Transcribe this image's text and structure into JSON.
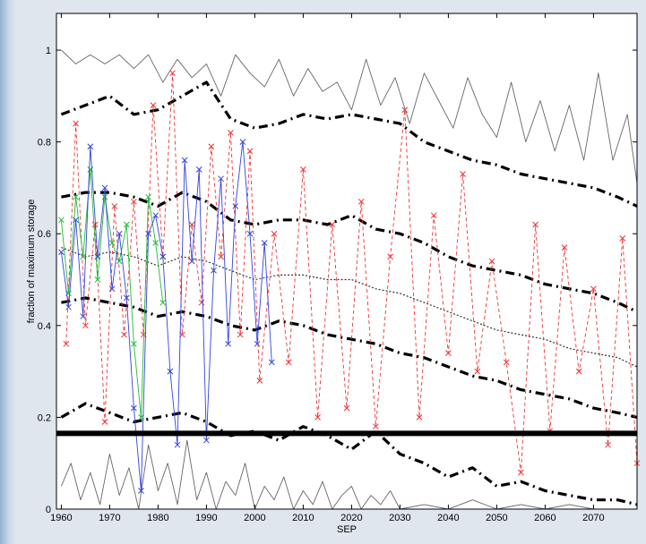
{
  "chart_data": {
    "type": "line",
    "title": "",
    "xlabel": "SEP",
    "ylabel": "fraction of maximum storage",
    "xlim": [
      1959,
      2079
    ],
    "ylim": [
      0,
      1.08
    ],
    "xticks": [
      1960,
      1970,
      1980,
      1990,
      2000,
      2010,
      2020,
      2030,
      2040,
      2050,
      2060,
      2070
    ],
    "yticks": [
      0,
      0.2,
      0.4,
      0.6,
      0.8,
      1
    ],
    "grid": false,
    "legend": "none",
    "threshold": 0.165,
    "series": [
      {
        "style": "solid-thin",
        "color": "#666666",
        "x": [
          1960,
          1963,
          1966,
          1969,
          1972,
          1975,
          1978,
          1981,
          1984,
          1987,
          1990,
          1993,
          1996,
          1999,
          2002,
          2005,
          2008,
          2011,
          2014,
          2017,
          2020,
          2023,
          2026,
          2029,
          2032,
          2035,
          2038,
          2041,
          2044,
          2047,
          2050,
          2053,
          2056,
          2059,
          2062,
          2065,
          2068,
          2071,
          2074,
          2077,
          2079
        ],
        "y": [
          1.0,
          0.97,
          0.99,
          0.97,
          0.99,
          0.96,
          0.99,
          0.93,
          0.98,
          0.94,
          0.97,
          0.9,
          0.99,
          0.95,
          0.92,
          0.98,
          0.9,
          0.96,
          0.91,
          0.93,
          0.87,
          0.98,
          0.88,
          0.94,
          0.84,
          0.95,
          0.89,
          0.83,
          0.94,
          0.86,
          0.81,
          0.93,
          0.8,
          0.89,
          0.78,
          0.88,
          0.76,
          0.95,
          0.76,
          0.86,
          0.71
        ]
      },
      {
        "style": "dash-dot-thick",
        "color": "#000000",
        "x": [
          1960,
          1965,
          1970,
          1975,
          1980,
          1985,
          1990,
          1995,
          2000,
          2005,
          2010,
          2015,
          2020,
          2025,
          2030,
          2035,
          2040,
          2045,
          2050,
          2055,
          2060,
          2065,
          2070,
          2075,
          2079
        ],
        "y": [
          0.86,
          0.88,
          0.9,
          0.86,
          0.87,
          0.9,
          0.93,
          0.85,
          0.83,
          0.84,
          0.86,
          0.85,
          0.86,
          0.85,
          0.84,
          0.8,
          0.78,
          0.76,
          0.75,
          0.73,
          0.72,
          0.71,
          0.7,
          0.68,
          0.66
        ]
      },
      {
        "style": "dash-dot-thick",
        "color": "#000000",
        "x": [
          1960,
          1965,
          1970,
          1975,
          1980,
          1985,
          1990,
          1995,
          2000,
          2005,
          2010,
          2015,
          2020,
          2025,
          2030,
          2035,
          2040,
          2045,
          2050,
          2055,
          2060,
          2065,
          2070,
          2075,
          2079
        ],
        "y": [
          0.68,
          0.69,
          0.69,
          0.68,
          0.66,
          0.69,
          0.67,
          0.63,
          0.62,
          0.63,
          0.63,
          0.62,
          0.64,
          0.61,
          0.6,
          0.58,
          0.55,
          0.53,
          0.52,
          0.51,
          0.49,
          0.48,
          0.47,
          0.45,
          0.43
        ]
      },
      {
        "style": "dotted-thin",
        "color": "#333333",
        "x": [
          1960,
          1965,
          1970,
          1975,
          1980,
          1985,
          1990,
          1995,
          2000,
          2005,
          2010,
          2015,
          2020,
          2025,
          2030,
          2035,
          2040,
          2045,
          2050,
          2055,
          2060,
          2065,
          2070,
          2075,
          2079
        ],
        "y": [
          0.57,
          0.55,
          0.56,
          0.55,
          0.53,
          0.55,
          0.54,
          0.52,
          0.5,
          0.51,
          0.51,
          0.5,
          0.5,
          0.48,
          0.47,
          0.45,
          0.43,
          0.41,
          0.39,
          0.38,
          0.37,
          0.35,
          0.34,
          0.33,
          0.31
        ]
      },
      {
        "style": "dash-dot-thick",
        "color": "#000000",
        "x": [
          1960,
          1965,
          1970,
          1975,
          1980,
          1985,
          1990,
          1995,
          2000,
          2005,
          2010,
          2015,
          2020,
          2025,
          2030,
          2035,
          2040,
          2045,
          2050,
          2055,
          2060,
          2065,
          2070,
          2075,
          2079
        ],
        "y": [
          0.45,
          0.46,
          0.45,
          0.44,
          0.42,
          0.43,
          0.42,
          0.4,
          0.39,
          0.41,
          0.4,
          0.38,
          0.37,
          0.36,
          0.34,
          0.33,
          0.31,
          0.29,
          0.28,
          0.26,
          0.25,
          0.24,
          0.22,
          0.21,
          0.2
        ]
      },
      {
        "style": "dash-dot-thick",
        "color": "#000000",
        "x": [
          1960,
          1965,
          1970,
          1975,
          1980,
          1985,
          1990,
          1995,
          2000,
          2005,
          2010,
          2015,
          2020,
          2025,
          2030,
          2035,
          2040,
          2045,
          2050,
          2055,
          2060,
          2065,
          2070,
          2075,
          2079
        ],
        "y": [
          0.2,
          0.23,
          0.21,
          0.19,
          0.2,
          0.21,
          0.19,
          0.16,
          0.17,
          0.15,
          0.18,
          0.16,
          0.13,
          0.17,
          0.12,
          0.1,
          0.07,
          0.09,
          0.05,
          0.06,
          0.04,
          0.03,
          0.02,
          0.02,
          0.01
        ]
      },
      {
        "style": "solid-thin",
        "color": "#666666",
        "x": [
          1960,
          1962,
          1964,
          1966,
          1968,
          1970,
          1972,
          1974,
          1976,
          1978,
          1980,
          1982,
          1984,
          1986,
          1988,
          1990,
          1992,
          1994,
          1996,
          1998,
          2000,
          2002,
          2004,
          2006,
          2008,
          2010,
          2012,
          2014,
          2016,
          2018,
          2020,
          2022,
          2024,
          2026,
          2028,
          2030,
          2035,
          2040,
          2045,
          2050,
          2055,
          2060,
          2065,
          2070,
          2075,
          2079
        ],
        "y": [
          0.05,
          0.1,
          0.02,
          0.08,
          0.01,
          0.12,
          0.03,
          0.09,
          0.0,
          0.14,
          0.04,
          0.1,
          0.01,
          0.15,
          0.02,
          0.08,
          0.0,
          0.06,
          0.03,
          0.1,
          0.0,
          0.05,
          0.02,
          0.07,
          0.0,
          0.04,
          0.01,
          0.06,
          0.0,
          0.03,
          0.05,
          0.0,
          0.03,
          0.01,
          0.04,
          0.0,
          0.01,
          0.0,
          0.02,
          0.0,
          0.01,
          0.0,
          0.01,
          0.0,
          0.0,
          0.0
        ]
      },
      {
        "style": "dashed-cross",
        "color": "#ee3333",
        "x": [
          1961,
          1963,
          1965,
          1967,
          1969,
          1971,
          1973,
          1975,
          1977,
          1979,
          1981,
          1983,
          1985,
          1987,
          1989,
          1991,
          1993,
          1995,
          1997,
          1999,
          2001,
          2004,
          2007,
          2010,
          2013,
          2016,
          2019,
          2022,
          2025,
          2028,
          2031,
          2034,
          2037,
          2040,
          2043,
          2046,
          2049,
          2052,
          2055,
          2058,
          2061,
          2064,
          2067,
          2070,
          2073,
          2076,
          2079
        ],
        "y": [
          0.36,
          0.84,
          0.4,
          0.62,
          0.19,
          0.66,
          0.38,
          0.67,
          0.38,
          0.88,
          0.55,
          0.95,
          0.38,
          0.62,
          0.45,
          0.79,
          0.55,
          0.82,
          0.38,
          0.78,
          0.28,
          0.6,
          0.32,
          0.74,
          0.2,
          0.62,
          0.22,
          0.67,
          0.18,
          0.55,
          0.87,
          0.2,
          0.64,
          0.34,
          0.73,
          0.3,
          0.54,
          0.32,
          0.08,
          0.62,
          0.17,
          0.57,
          0.3,
          0.48,
          0.14,
          0.59,
          0.1
        ]
      },
      {
        "style": "solid-cross",
        "color": "#22bb33",
        "x": [
          1960,
          1961.5,
          1963,
          1964.5,
          1966,
          1967.5,
          1969,
          1970.5,
          1972,
          1973.5,
          1975,
          1976.5,
          1978,
          1979.5,
          1981
        ],
        "y": [
          0.63,
          0.47,
          0.68,
          0.55,
          0.74,
          0.5,
          0.68,
          0.58,
          0.54,
          0.62,
          0.36,
          0.2,
          0.68,
          0.58,
          0.45
        ]
      },
      {
        "style": "solid-cross",
        "color": "#3344dd",
        "x": [
          1960,
          1961.5,
          1963,
          1964.5,
          1966,
          1967.5,
          1969,
          1970.5,
          1972,
          1973.5,
          1975,
          1976.5,
          1978,
          1979.5,
          1981,
          1982.5,
          1984,
          1985.5,
          1987,
          1988.5,
          1990,
          1991.5,
          1993,
          1994.5,
          1996,
          1997.5,
          1999,
          2000.5,
          2002,
          2003.5
        ],
        "y": [
          0.56,
          0.44,
          0.63,
          0.42,
          0.79,
          0.55,
          0.7,
          0.48,
          0.6,
          0.46,
          0.22,
          0.04,
          0.6,
          0.64,
          0.55,
          0.3,
          0.14,
          0.76,
          0.54,
          0.74,
          0.15,
          0.52,
          0.72,
          0.36,
          0.66,
          0.8,
          0.6,
          0.36,
          0.58,
          0.32
        ]
      }
    ]
  }
}
